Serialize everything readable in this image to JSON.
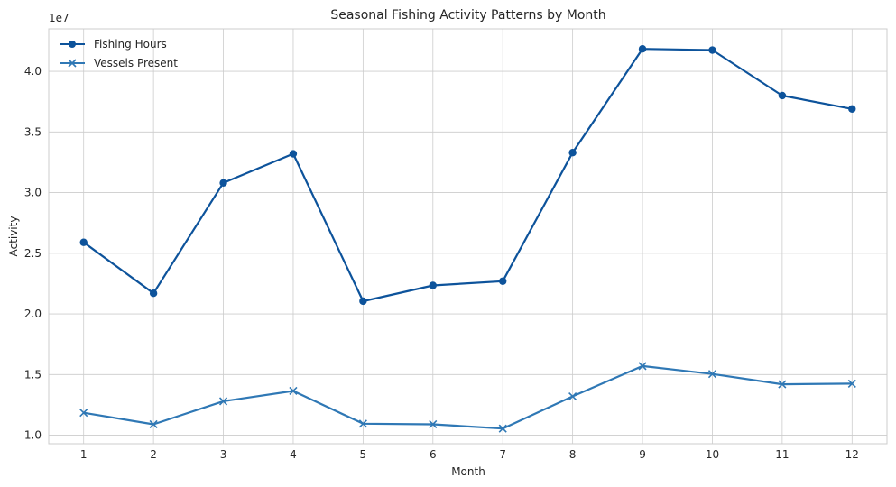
{
  "chart_data": {
    "type": "line",
    "title": "Seasonal Fishing Activity Patterns by Month",
    "xlabel": "Month",
    "ylabel": "Activity",
    "y_offset_label": "1e7",
    "x": [
      1,
      2,
      3,
      4,
      5,
      6,
      7,
      8,
      9,
      10,
      11,
      12
    ],
    "x_tick_labels": [
      "1",
      "2",
      "3",
      "4",
      "5",
      "6",
      "7",
      "8",
      "9",
      "10",
      "11",
      "12"
    ],
    "y_tick_labels": [
      "1.0",
      "1.5",
      "2.0",
      "2.5",
      "3.0",
      "3.5",
      "4.0"
    ],
    "y_ticks": [
      10000000,
      15000000,
      20000000,
      25000000,
      30000000,
      35000000,
      40000000
    ],
    "xlim": [
      0.5,
      12.5
    ],
    "ylim": [
      9300000,
      43500000
    ],
    "grid": true,
    "legend_position": "top-left",
    "series": [
      {
        "name": "Fishing Hours",
        "marker": "circle",
        "color": "#0d539b",
        "values": [
          25900000,
          21700000,
          30800000,
          33200000,
          21050000,
          22350000,
          22700000,
          33300000,
          41850000,
          41750000,
          38000000,
          36900000
        ]
      },
      {
        "name": "Vessels Present",
        "marker": "x",
        "color": "#2f78b5",
        "values": [
          11850000,
          10900000,
          12800000,
          13650000,
          10950000,
          10900000,
          10550000,
          13200000,
          15700000,
          15050000,
          14200000,
          14250000
        ]
      }
    ]
  }
}
